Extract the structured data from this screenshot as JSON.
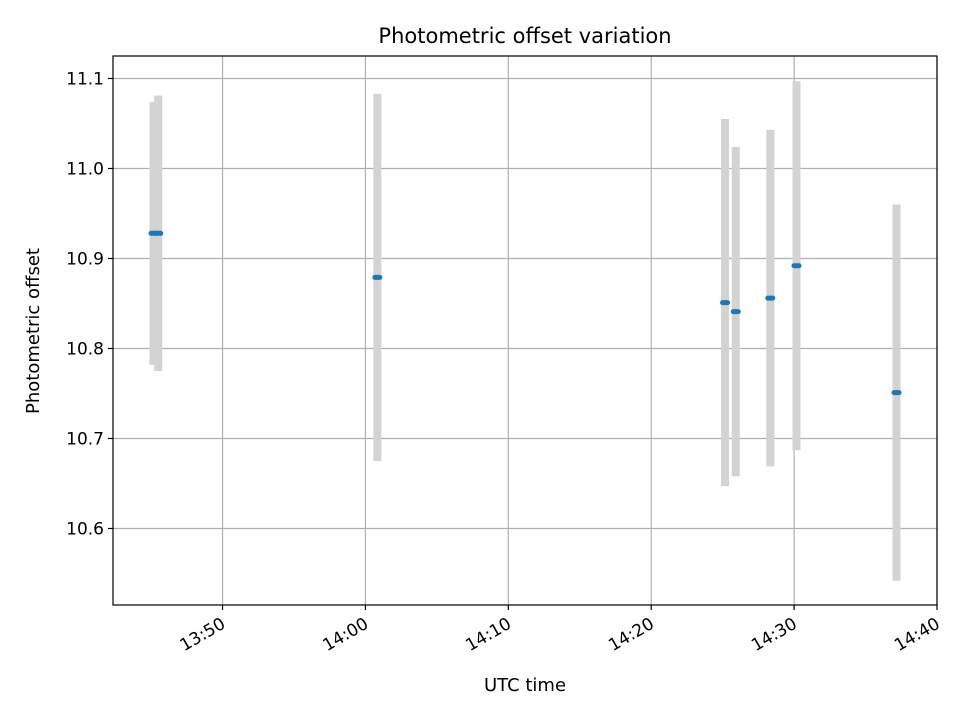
{
  "chart_data": {
    "type": "scatter",
    "title": "Photometric offset variation",
    "xlabel": "UTC time",
    "ylabel": "Photometric offset",
    "xlim": [
      "13:42:20",
      "14:40:00"
    ],
    "ylim": [
      10.515,
      11.125
    ],
    "x_ticks": [
      "13:50",
      "14:00",
      "14:10",
      "14:20",
      "14:30",
      "14:40"
    ],
    "y_ticks": [
      "10.6",
      "10.7",
      "10.8",
      "10.9",
      "11.0",
      "11.1"
    ],
    "grid": true,
    "errorbar_color": "#d3d3d3",
    "point_color": "#1f77b4",
    "points": [
      {
        "time": "13:45:10",
        "value": 10.928,
        "error": 0.146
      },
      {
        "time": "13:45:30",
        "value": 10.928,
        "error": 0.153
      },
      {
        "time": "14:00:50",
        "value": 10.879,
        "error": 0.204
      },
      {
        "time": "14:25:10",
        "value": 10.851,
        "error": 0.204
      },
      {
        "time": "14:25:55",
        "value": 10.841,
        "error": 0.183
      },
      {
        "time": "14:28:20",
        "value": 10.856,
        "error": 0.187
      },
      {
        "time": "14:30:10",
        "value": 10.892,
        "error": 0.205
      },
      {
        "time": "14:37:10",
        "value": 10.751,
        "error": 0.209
      }
    ]
  }
}
